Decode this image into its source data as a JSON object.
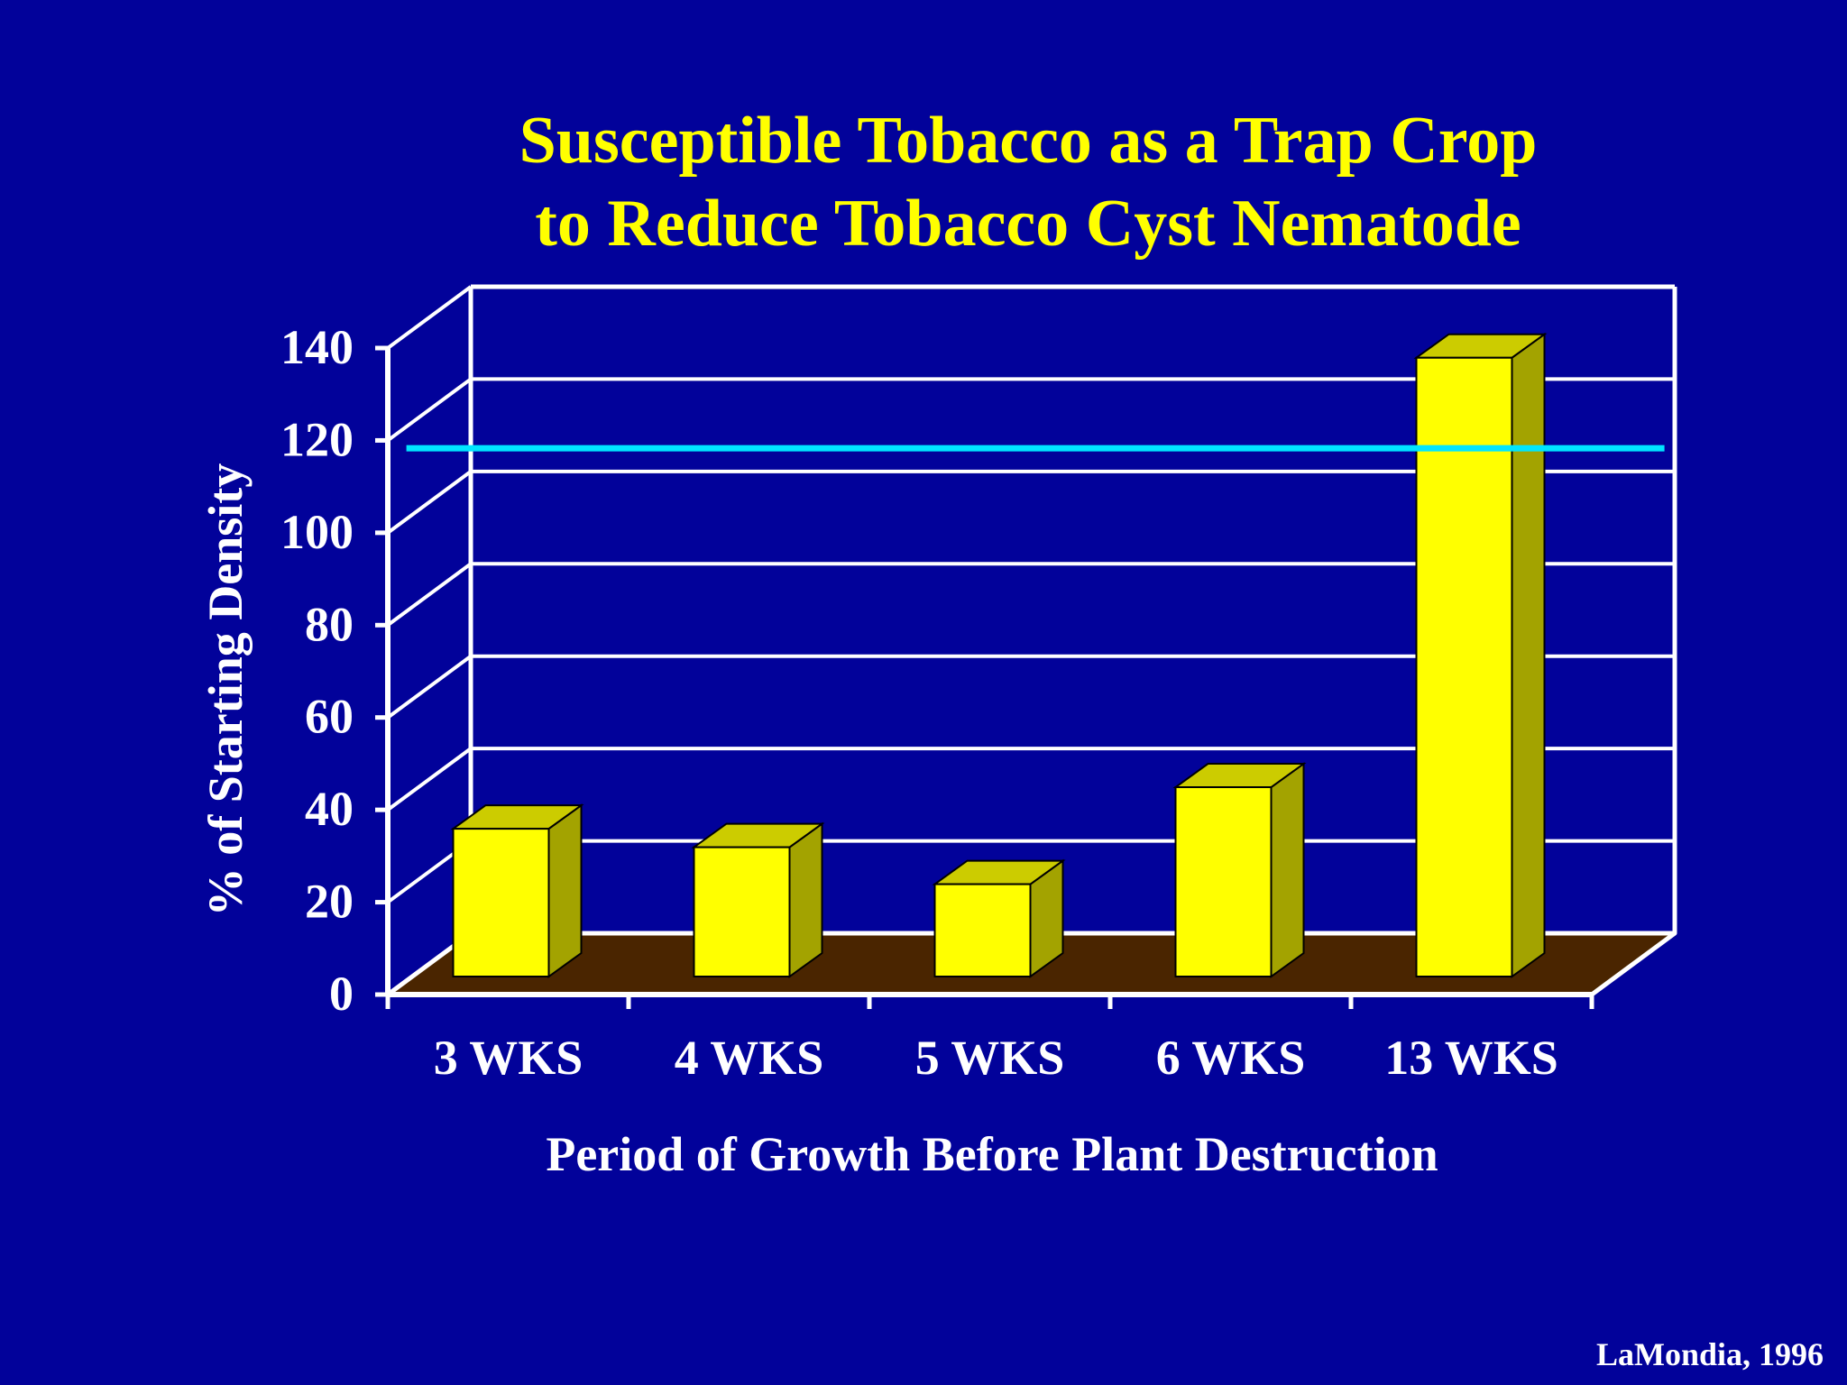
{
  "slide": {
    "title_line1": "Susceptible Tobacco as a Trap Crop",
    "title_line2": "to Reduce Tobacco Cyst Nematode",
    "citation": "LaMondia, 1996"
  },
  "colors": {
    "background": "#02029a",
    "title": "#ffff00",
    "bar_front": "#ffff00",
    "bar_top": "#cccc00",
    "bar_side": "#a3a300",
    "floor": "#4a2500",
    "reference_line": "#00e5ff",
    "axis": "#ffffff"
  },
  "chart_data": {
    "type": "bar",
    "title": "Susceptible Tobacco as a Trap Crop to Reduce Tobacco Cyst Nematode",
    "xlabel": "Period of Growth Before Plant Destruction",
    "ylabel": "% of Starting Density",
    "categories": [
      "3 WKS",
      "4 WKS",
      "5 WKS",
      "6 WKS",
      "13 WKS"
    ],
    "values": [
      32,
      28,
      20,
      41,
      134
    ],
    "ylim": [
      0,
      140
    ],
    "yticks": [
      0,
      20,
      40,
      60,
      80,
      100,
      120,
      140
    ],
    "reference_line": 111,
    "style": "3d",
    "grid": true,
    "legend": "none"
  }
}
